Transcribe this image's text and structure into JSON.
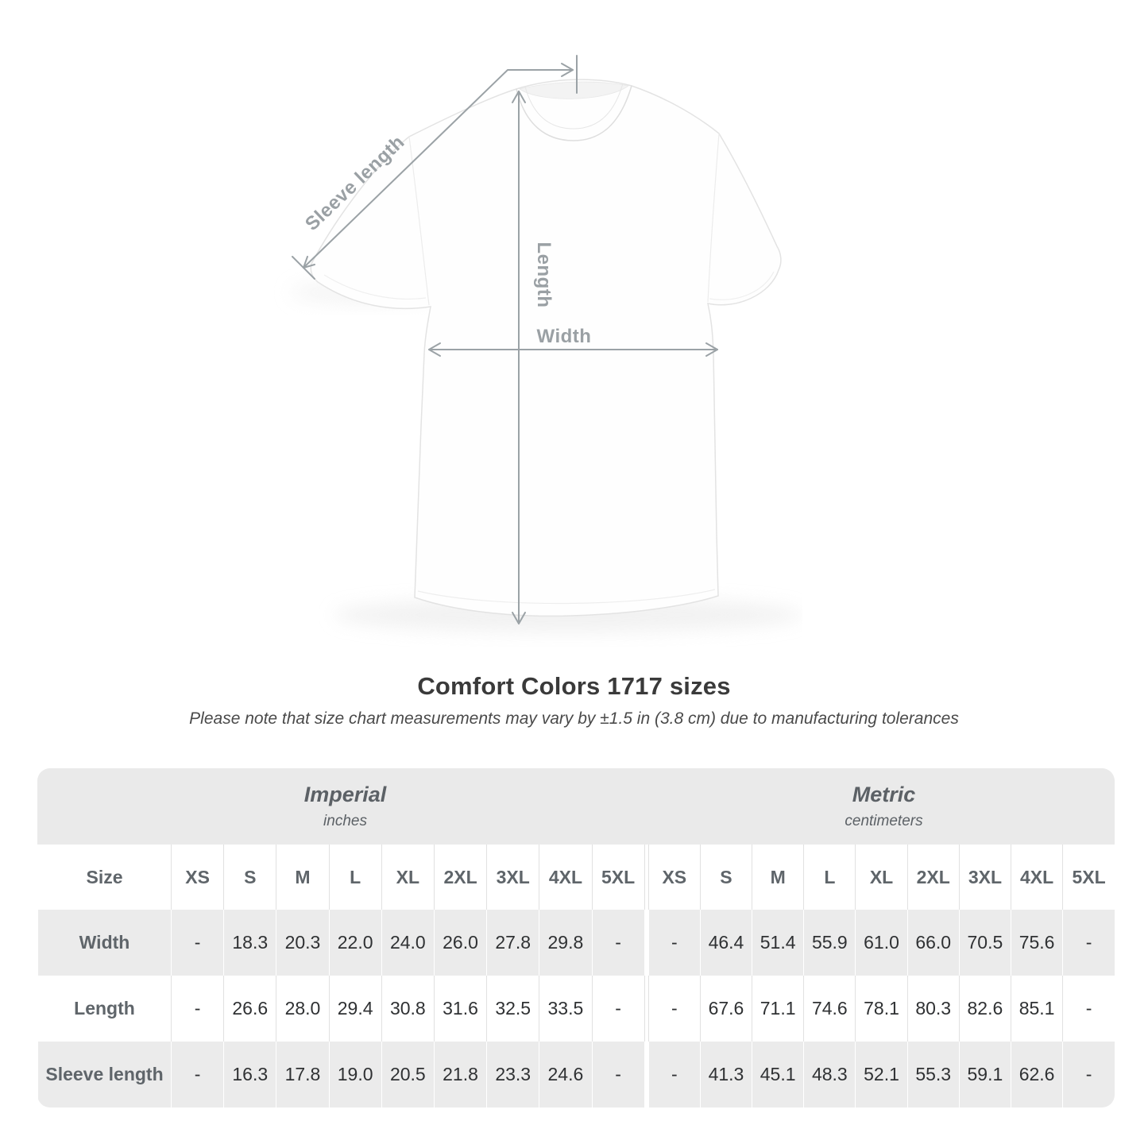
{
  "diagram": {
    "labels": {
      "sleeve": "Sleeve length",
      "length": "Length",
      "width": "Width"
    }
  },
  "heading": {
    "title": "Comfort Colors 1717 sizes",
    "note": "Please note that size chart measurements may vary by ±1.5 in (3.8 cm) due to manufacturing tolerances"
  },
  "size_table": {
    "corner_label": "Size",
    "sections": [
      {
        "name": "Imperial",
        "unit": "inches"
      },
      {
        "name": "Metric",
        "unit": "centimeters"
      }
    ],
    "sizes": [
      "XS",
      "S",
      "M",
      "L",
      "XL",
      "2XL",
      "3XL",
      "4XL",
      "5XL"
    ],
    "rows": [
      {
        "label": "Width",
        "imperial": [
          "-",
          "18.3",
          "20.3",
          "22.0",
          "24.0",
          "26.0",
          "27.8",
          "29.8",
          "-"
        ],
        "metric": [
          "-",
          "46.4",
          "51.4",
          "55.9",
          "61.0",
          "66.0",
          "70.5",
          "75.6",
          "-"
        ]
      },
      {
        "label": "Length",
        "imperial": [
          "-",
          "26.6",
          "28.0",
          "29.4",
          "30.8",
          "31.6",
          "32.5",
          "33.5",
          "-"
        ],
        "metric": [
          "-",
          "67.6",
          "71.1",
          "74.6",
          "78.1",
          "80.3",
          "82.6",
          "85.1",
          "-"
        ]
      },
      {
        "label": "Sleeve length",
        "imperial": [
          "-",
          "16.3",
          "17.8",
          "19.0",
          "20.5",
          "21.8",
          "23.3",
          "24.6",
          "-"
        ],
        "metric": [
          "-",
          "41.3",
          "45.1",
          "48.3",
          "52.1",
          "55.3",
          "59.1",
          "62.6",
          "-"
        ]
      }
    ]
  },
  "colors": {
    "table_band": "#eaeaea",
    "zebra_row": "#ebebeb",
    "diagram_gray": "#9ba2a6",
    "label_text": "#5f656a",
    "value_text": "#2f3133",
    "title_text": "#3a3a3a"
  }
}
